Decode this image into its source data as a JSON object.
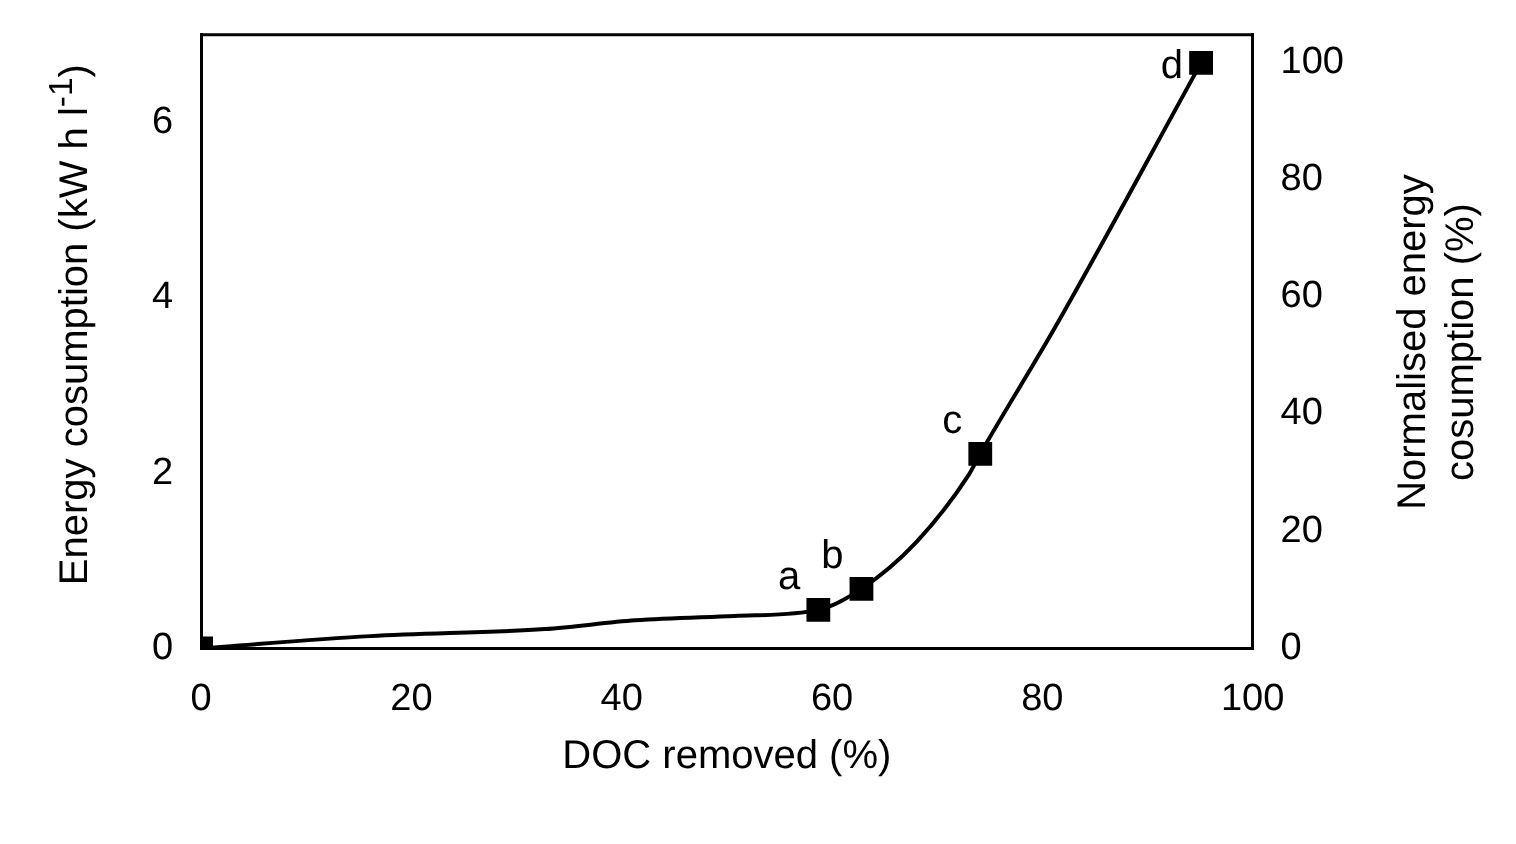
{
  "chart_data": {
    "type": "scatter",
    "xlabel": "DOC removed (%)",
    "ylabel": "Energy cosumption (kW h l$^{-1}$)",
    "y2label": "Normalised energy cosumption (%)",
    "series": [
      {
        "type": "line",
        "color": "#000000",
        "marker": "none",
        "x": [
          0,
          16.1,
          32.7,
          41.3,
          50.7,
          58.7,
          62.8,
          68,
          73,
          74.1,
          81.3,
          95.1
        ],
        "values": [
          0,
          0.14,
          0.22,
          0.32,
          0.37,
          0.44,
          0.68,
          1.21,
          1.98,
          2.22,
          3.68,
          6.68
        ]
      },
      {
        "color": "#000000",
        "marker": "square",
        "x": [
          0,
          58.7,
          62.8,
          74.1,
          95.1
        ],
        "values": [
          0,
          0.44,
          0.68,
          2.22,
          6.68
        ]
      }
    ],
    "annotations": [
      {
        "text": "a",
        "x": 58.7,
        "y": 0.44
      },
      {
        "text": "b",
        "x": 62.8,
        "y": 0.68
      },
      {
        "text": "c",
        "x": 74.1,
        "y": 2.22
      },
      {
        "text": "d",
        "x": 95.1,
        "y": 6.68
      }
    ],
    "xlim": [
      0,
      100
    ],
    "xticks": [
      0,
      20,
      40,
      60,
      80,
      100
    ],
    "ylim": [
      0,
      7
    ],
    "yticks": [
      0,
      2,
      4,
      6
    ],
    "y2lim": [
      0,
      104.7
    ],
    "y2ticks": [
      0,
      20,
      40,
      60,
      80,
      100
    ],
    "grid": false,
    "legend": false
  }
}
